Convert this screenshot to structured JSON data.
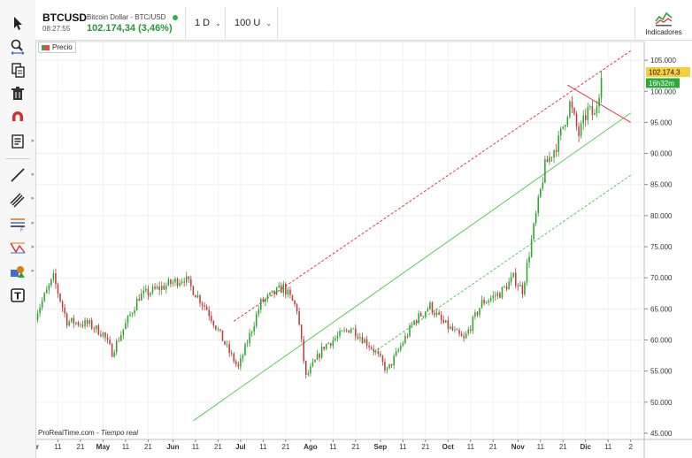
{
  "header": {
    "symbol": "BTCUSD",
    "time": "08:27:55",
    "pair": "Bitcoin Dollar - BTC/USD",
    "price_change": "102.174,34 (3,46%)",
    "period_label": "1 D",
    "units_label": "100 U",
    "indicators_label": "Indicadores"
  },
  "toolbar": {
    "icons": [
      "cursor-icon",
      "zoom-icon",
      "copy-icon",
      "trash-icon",
      "magnet-icon",
      "list-icon",
      "line-tool-icon",
      "parallel-lines-icon",
      "fibonacci-icon",
      "zigzag-icon",
      "shapes-icon",
      "text-tool-icon"
    ]
  },
  "chart": {
    "legend_label": "Precio",
    "watermark_brand": "ProRealTime.com",
    "watermark_sep": " - ",
    "watermark_mode": "Tiempo real",
    "price_tag": "102.174,3",
    "countdown_tag": "16h32m",
    "colors": {
      "up": "#2aa52a",
      "down": "#c23a3a",
      "channel_red": "#e33b3b",
      "channel_green": "#5cc85c",
      "price_tag_bg": "#f4d03f",
      "countdown_bg": "#2eaa3c"
    }
  },
  "chart_data": {
    "type": "candlestick",
    "ylim": [
      44000,
      108000
    ],
    "y_ticks": [
      "105.000",
      "100.000",
      "95.000",
      "90.000",
      "85.000",
      "80.000",
      "75.000",
      "70.000",
      "65.000",
      "60.000",
      "55.000",
      "50.000",
      "45.000"
    ],
    "y_tick_values": [
      105000,
      100000,
      95000,
      90000,
      85000,
      80000,
      75000,
      70000,
      65000,
      60000,
      55000,
      50000,
      45000
    ],
    "x_ticks": [
      "br",
      "11",
      "21",
      "May",
      "11",
      "21",
      "Jun",
      "11",
      "21",
      "Jul",
      "11",
      "21",
      "Ago",
      "11",
      "21",
      "Sep",
      "11",
      "21",
      "Oct",
      "11",
      "21",
      "Nov",
      "11",
      "21",
      "Dic",
      "11",
      "2"
    ],
    "x_tick_days": [
      0,
      10,
      20,
      30,
      40,
      50,
      61,
      71,
      81,
      91,
      101,
      111,
      122,
      132,
      142,
      153,
      163,
      173,
      183,
      193,
      203,
      214,
      224,
      234,
      244,
      254,
      264
    ],
    "key_closes": [
      {
        "day": 0,
        "close": 64000
      },
      {
        "day": 8,
        "close": 70000
      },
      {
        "day": 14,
        "close": 63000
      },
      {
        "day": 24,
        "close": 62500
      },
      {
        "day": 30,
        "close": 61000
      },
      {
        "day": 34,
        "close": 58000
      },
      {
        "day": 46,
        "close": 67000
      },
      {
        "day": 56,
        "close": 68500
      },
      {
        "day": 66,
        "close": 70000
      },
      {
        "day": 76,
        "close": 65000
      },
      {
        "day": 86,
        "close": 58000
      },
      {
        "day": 90,
        "close": 55500
      },
      {
        "day": 100,
        "close": 66000
      },
      {
        "day": 110,
        "close": 68500
      },
      {
        "day": 116,
        "close": 65000
      },
      {
        "day": 120,
        "close": 54000
      },
      {
        "day": 128,
        "close": 59000
      },
      {
        "day": 140,
        "close": 62000
      },
      {
        "day": 150,
        "close": 58500
      },
      {
        "day": 156,
        "close": 55000
      },
      {
        "day": 168,
        "close": 63000
      },
      {
        "day": 175,
        "close": 65500
      },
      {
        "day": 180,
        "close": 63000
      },
      {
        "day": 190,
        "close": 60000
      },
      {
        "day": 198,
        "close": 66000
      },
      {
        "day": 206,
        "close": 67500
      },
      {
        "day": 212,
        "close": 70000
      },
      {
        "day": 216,
        "close": 68000
      },
      {
        "day": 220,
        "close": 76000
      },
      {
        "day": 226,
        "close": 88000
      },
      {
        "day": 232,
        "close": 92000
      },
      {
        "day": 237,
        "close": 98000
      },
      {
        "day": 241,
        "close": 93000
      },
      {
        "day": 245,
        "close": 97000
      },
      {
        "day": 248,
        "close": 96000
      },
      {
        "day": 251,
        "close": 102174
      }
    ],
    "trend_lines": [
      {
        "name": "red-dashed-upper",
        "color": "#e33b3b",
        "dash": true,
        "p1": {
          "day": 88,
          "price": 63000
        },
        "p2": {
          "day": 264,
          "price": 106500
        }
      },
      {
        "name": "green-lower",
        "color": "#5cc85c",
        "dash": false,
        "p1": {
          "day": 70,
          "price": 47000
        },
        "p2": {
          "day": 264,
          "price": 96500
        }
      },
      {
        "name": "green-dashed",
        "color": "#5cc85c",
        "dash": true,
        "p1": {
          "day": 150,
          "price": 58000
        },
        "p2": {
          "day": 264,
          "price": 86500
        }
      },
      {
        "name": "red-resistance",
        "color": "#e33b3b",
        "dash": false,
        "p1": {
          "day": 236,
          "price": 101000
        },
        "p2": {
          "day": 264,
          "price": 95000
        }
      }
    ]
  }
}
